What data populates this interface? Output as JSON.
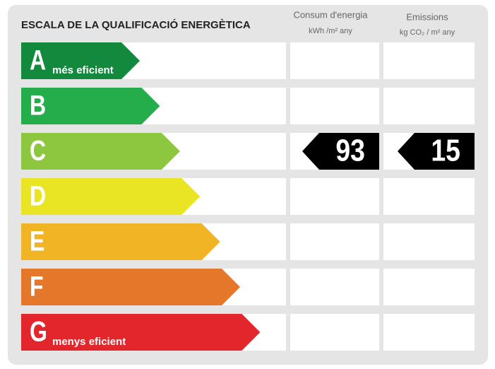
{
  "title": "ESCALA DE LA QUALIFICACIÓ ENERGÈTICA",
  "columns": {
    "consumption": {
      "title": "Consum d'energia",
      "unit": "kWh /m² any"
    },
    "emissions": {
      "title": "Emissions",
      "unit": "kg CO₂ / m² any"
    }
  },
  "rows": [
    {
      "letter": "A",
      "label": "més eficient",
      "color": "#12893d"
    },
    {
      "letter": "B",
      "color": "#25ac4b"
    },
    {
      "letter": "C",
      "color": "#8dc63f",
      "consumption": 93,
      "emissions": 15
    },
    {
      "letter": "D",
      "color": "#e9e524"
    },
    {
      "letter": "E",
      "color": "#f0b424"
    },
    {
      "letter": "F",
      "color": "#e5772b"
    },
    {
      "letter": "G",
      "label": "menys eficient",
      "color": "#e2262b"
    }
  ]
}
